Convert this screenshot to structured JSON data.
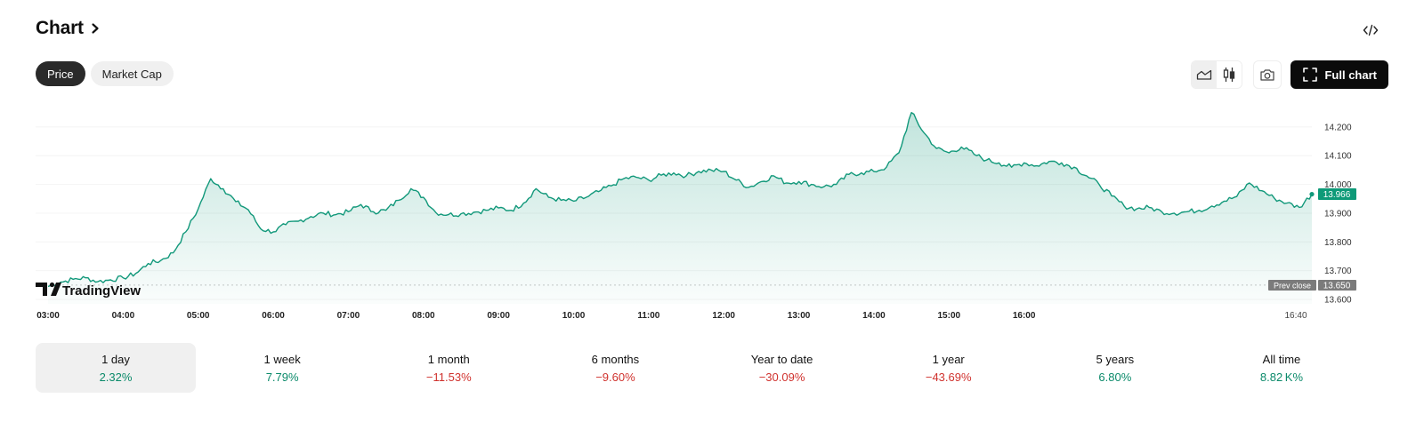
{
  "header": {
    "title": "Chart"
  },
  "tabs": [
    {
      "label": "Price",
      "active": true
    },
    {
      "label": "Market Cap",
      "active": false
    }
  ],
  "toolbar": {
    "full_chart_label": "Full chart"
  },
  "icons": [
    "chevron-right-icon",
    "embed-code-icon",
    "area-chart-icon",
    "candlestick-icon",
    "camera-icon",
    "fullscreen-icon",
    "tradingview-logo-icon"
  ],
  "colors": {
    "line": "#11987a",
    "positive": "#0b8a6a",
    "negative": "#d0322e",
    "price_badge": "#0e9a78",
    "prev_close_badge": "#7b7b7b"
  },
  "chart_data": {
    "type": "area",
    "watermark": "TradingView",
    "x_tick_labels": [
      "03:00",
      "04:00",
      "05:00",
      "06:00",
      "07:00",
      "08:00",
      "09:00",
      "10:00",
      "11:00",
      "12:00",
      "13:00",
      "14:00",
      "15:00",
      "16:00",
      "16:40"
    ],
    "y_tick_labels": [
      "14.200",
      "14.100",
      "14.000",
      "13.900",
      "13.800",
      "13.700",
      "13.600"
    ],
    "ylim": [
      13.6,
      14.28
    ],
    "prev_close": {
      "label": "Prev close",
      "value": "13.650"
    },
    "last_price": "13.966",
    "series": [
      {
        "points": [
          [
            "03:00",
            13.645
          ],
          [
            "03:10",
            13.66
          ],
          [
            "03:20",
            13.67
          ],
          [
            "03:30",
            13.675
          ],
          [
            "03:40",
            13.662
          ],
          [
            "03:50",
            13.668
          ],
          [
            "04:00",
            13.675
          ],
          [
            "04:10",
            13.69
          ],
          [
            "04:20",
            13.725
          ],
          [
            "04:30",
            13.735
          ],
          [
            "04:40",
            13.762
          ],
          [
            "04:50",
            13.835
          ],
          [
            "05:00",
            13.915
          ],
          [
            "05:10",
            14.02
          ],
          [
            "05:20",
            13.985
          ],
          [
            "05:30",
            13.94
          ],
          [
            "05:40",
            13.912
          ],
          [
            "05:50",
            13.845
          ],
          [
            "06:00",
            13.835
          ],
          [
            "06:10",
            13.86
          ],
          [
            "06:20",
            13.872
          ],
          [
            "06:30",
            13.888
          ],
          [
            "06:40",
            13.9
          ],
          [
            "06:50",
            13.895
          ],
          [
            "07:00",
            13.905
          ],
          [
            "07:10",
            13.93
          ],
          [
            "07:20",
            13.905
          ],
          [
            "07:30",
            13.91
          ],
          [
            "07:40",
            13.945
          ],
          [
            "07:50",
            13.985
          ],
          [
            "08:00",
            13.955
          ],
          [
            "08:10",
            13.902
          ],
          [
            "08:20",
            13.895
          ],
          [
            "08:30",
            13.898
          ],
          [
            "08:40",
            13.903
          ],
          [
            "08:50",
            13.91
          ],
          [
            "09:00",
            13.918
          ],
          [
            "09:10",
            13.91
          ],
          [
            "09:20",
            13.935
          ],
          [
            "09:30",
            13.985
          ],
          [
            "09:40",
            13.955
          ],
          [
            "09:50",
            13.945
          ],
          [
            "10:00",
            13.942
          ],
          [
            "10:10",
            13.955
          ],
          [
            "10:20",
            13.975
          ],
          [
            "10:30",
            13.995
          ],
          [
            "10:40",
            14.02
          ],
          [
            "10:50",
            14.025
          ],
          [
            "11:00",
            14.015
          ],
          [
            "11:10",
            14.032
          ],
          [
            "11:20",
            14.04
          ],
          [
            "11:30",
            14.03
          ],
          [
            "11:40",
            14.045
          ],
          [
            "11:50",
            14.05
          ],
          [
            "12:00",
            14.045
          ],
          [
            "12:10",
            14.015
          ],
          [
            "12:20",
            13.99
          ],
          [
            "12:30",
            14.01
          ],
          [
            "12:40",
            14.03
          ],
          [
            "12:50",
            14.005
          ],
          [
            "13:00",
            14.01
          ],
          [
            "13:10",
            14.0
          ],
          [
            "13:20",
            13.992
          ],
          [
            "13:30",
            14.0
          ],
          [
            "13:40",
            14.035
          ],
          [
            "13:50",
            14.04
          ],
          [
            "14:00",
            14.045
          ],
          [
            "14:10",
            14.06
          ],
          [
            "14:20",
            14.11
          ],
          [
            "14:30",
            14.25
          ],
          [
            "14:40",
            14.18
          ],
          [
            "14:50",
            14.125
          ],
          [
            "15:00",
            14.11
          ],
          [
            "15:10",
            14.13
          ],
          [
            "15:20",
            14.105
          ],
          [
            "15:30",
            14.085
          ],
          [
            "15:40",
            14.075
          ],
          [
            "15:50",
            14.06
          ],
          [
            "16:00",
            14.075
          ],
          [
            "16:10",
            14.065
          ],
          [
            "16:20",
            14.08
          ],
          [
            "16:30",
            14.075
          ],
          [
            "16:40",
            14.06
          ],
          [
            "16:50",
            14.03
          ],
          [
            "17:00",
            14.0
          ],
          [
            "17:10",
            13.96
          ],
          [
            "17:20",
            13.925
          ],
          [
            "17:30",
            13.915
          ],
          [
            "17:40",
            13.92
          ],
          [
            "17:50",
            13.905
          ],
          [
            "18:00",
            13.9
          ],
          [
            "18:10",
            13.905
          ],
          [
            "18:20",
            13.91
          ],
          [
            "18:30",
            13.925
          ],
          [
            "18:40",
            13.942
          ],
          [
            "18:50",
            13.958
          ],
          [
            "19:00",
            14.005
          ],
          [
            "19:10",
            13.978
          ],
          [
            "19:20",
            13.952
          ],
          [
            "19:30",
            13.935
          ],
          [
            "19:40",
            13.92
          ],
          [
            "19:50",
            13.966
          ]
        ]
      }
    ]
  },
  "ranges": [
    {
      "label": "1 day",
      "value": "2.32%",
      "trend": "pos",
      "active": true
    },
    {
      "label": "1 week",
      "value": "7.79%",
      "trend": "pos",
      "active": false
    },
    {
      "label": "1 month",
      "value": "−11.53%",
      "trend": "neg",
      "active": false
    },
    {
      "label": "6 months",
      "value": "−9.60%",
      "trend": "neg",
      "active": false
    },
    {
      "label": "Year to date",
      "value": "−30.09%",
      "trend": "neg",
      "active": false
    },
    {
      "label": "1 year",
      "value": "−43.69%",
      "trend": "neg",
      "active": false
    },
    {
      "label": "5 years",
      "value": "6.80%",
      "trend": "pos",
      "active": false
    },
    {
      "label": "All time",
      "value": "8.82 K%",
      "trend": "pos",
      "active": false
    }
  ]
}
